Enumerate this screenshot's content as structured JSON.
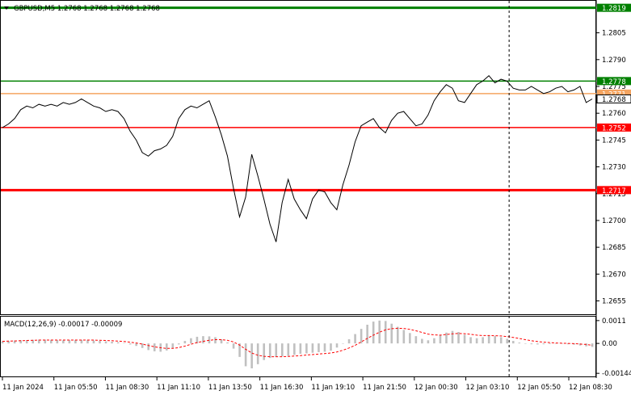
{
  "chart_data": [
    {
      "type": "line",
      "title": "GBPUSD,M5  1.2768 1.2768 1.2768 1.2768",
      "ylim": [
        1.2648,
        1.2822
      ],
      "y_ticks": [
        "1.2805",
        "1.2790",
        "1.2775",
        "1.2760",
        "1.2745",
        "1.2730",
        "1.2715",
        "1.2700",
        "1.2685",
        "1.2670",
        "1.2655"
      ],
      "y_tick_values": [
        1.2805,
        1.279,
        1.2775,
        1.276,
        1.2745,
        1.273,
        1.2715,
        1.27,
        1.2685,
        1.267,
        1.2655
      ],
      "x_tick_labels": [
        "11 Jan 2024",
        "11 Jan 05:50",
        "11 Jan 08:30",
        "11 Jan 11:10",
        "11 Jan 13:50",
        "11 Jan 16:30",
        "11 Jan 19:10",
        "11 Jan 21:50",
        "12 Jan 00:30",
        "12 Jan 03:10",
        "12 Jan 05:50",
        "12 Jan 08:30"
      ],
      "x": [
        0,
        3,
        6,
        9,
        12,
        15,
        18,
        21,
        24,
        27,
        30,
        33,
        36,
        39,
        42,
        45,
        48,
        51,
        54,
        57,
        60,
        63,
        66,
        69,
        72,
        75,
        78,
        81,
        84,
        87,
        90,
        93,
        96,
        99,
        102,
        105,
        108,
        111,
        114,
        117,
        120,
        123,
        126,
        129,
        132,
        135,
        138,
        141,
        144,
        147,
        150,
        153,
        156,
        159,
        162,
        165,
        168,
        171,
        174,
        177,
        180,
        183,
        186,
        189,
        192,
        195,
        198,
        201,
        204,
        207,
        210,
        213,
        216,
        219,
        222,
        225,
        228,
        231,
        234,
        237,
        240,
        243,
        246,
        249,
        252,
        255,
        258,
        261,
        264,
        267,
        270,
        273,
        276,
        279,
        282,
        285,
        288,
        291
      ],
      "close": [
        1.2752,
        1.2754,
        1.2757,
        1.2762,
        1.2764,
        1.2763,
        1.2765,
        1.2764,
        1.2765,
        1.2764,
        1.2766,
        1.2765,
        1.2766,
        1.2768,
        1.2766,
        1.2764,
        1.2763,
        1.2761,
        1.2762,
        1.2761,
        1.2757,
        1.275,
        1.2745,
        1.2738,
        1.2736,
        1.2739,
        1.274,
        1.2742,
        1.2747,
        1.2757,
        1.2762,
        1.2764,
        1.2763,
        1.2765,
        1.2767,
        1.2758,
        1.2748,
        1.2736,
        1.2718,
        1.2702,
        1.2713,
        1.2737,
        1.2725,
        1.2712,
        1.2698,
        1.2688,
        1.271,
        1.2723,
        1.2712,
        1.2706,
        1.2701,
        1.2712,
        1.2717,
        1.2716,
        1.271,
        1.2706,
        1.272,
        1.2731,
        1.2744,
        1.2753,
        1.2755,
        1.2757,
        1.2752,
        1.2749,
        1.2756,
        1.276,
        1.2761,
        1.2757,
        1.2753,
        1.2754,
        1.2759,
        1.2767,
        1.2772,
        1.2776,
        1.2774,
        1.2767,
        1.2766,
        1.2771,
        1.2776,
        1.2778,
        1.2781,
        1.2777,
        1.2779,
        1.2778,
        1.2774,
        1.2773,
        1.2773,
        1.2775,
        1.2773,
        1.2771,
        1.2772,
        1.2774,
        1.2775,
        1.2772,
        1.2773,
        1.2775,
        1.2766,
        1.2768
      ],
      "horizontal_lines": [
        {
          "label": "1.2819",
          "value": 1.2819,
          "color": "#008000",
          "label_bg": "#008000"
        },
        {
          "label": "1.2778",
          "value": 1.2778,
          "color": "#008000",
          "label_bg": "#008000"
        },
        {
          "label": "1.2771",
          "value": 1.2771,
          "color": "#f4a460",
          "label_bg": "#f4a460"
        },
        {
          "label": "1.2752",
          "value": 1.2752,
          "color": "#ff0000",
          "label_bg": "#ff0000"
        },
        {
          "label": "1.2717",
          "value": 1.2717,
          "color": "#ff0000",
          "label_bg": "#ff0000"
        }
      ],
      "current_price": {
        "label": "1.2768",
        "value": 1.2768
      },
      "vertical_line_at_x": 250,
      "line_color": "#000000"
    },
    {
      "type": "bar",
      "title": "MACD(12,26,9) -0.00017 -0.00009",
      "ylim": [
        -0.00155,
        0.00125
      ],
      "y_ticks": [
        "0.0011",
        "0.00",
        "-0.00144"
      ],
      "y_tick_values": [
        0.0011,
        0.0,
        -0.00144
      ],
      "x": [
        0,
        3,
        6,
        9,
        12,
        15,
        18,
        21,
        24,
        27,
        30,
        33,
        36,
        39,
        42,
        45,
        48,
        51,
        54,
        57,
        60,
        63,
        66,
        69,
        72,
        75,
        78,
        81,
        84,
        87,
        90,
        93,
        96,
        99,
        102,
        105,
        108,
        111,
        114,
        117,
        120,
        123,
        126,
        129,
        132,
        135,
        138,
        141,
        144,
        147,
        150,
        153,
        156,
        159,
        162,
        165,
        168,
        171,
        174,
        177,
        180,
        183,
        186,
        189,
        192,
        195,
        198,
        201,
        204,
        207,
        210,
        213,
        216,
        219,
        222,
        225,
        228,
        231,
        234,
        237,
        240,
        243,
        246,
        249,
        252,
        255,
        258,
        261,
        264,
        267,
        270,
        273,
        276,
        279,
        282,
        285,
        288,
        291
      ],
      "histogram": [
        0.0001,
        0.00012,
        0.00014,
        0.00015,
        0.00016,
        0.00017,
        0.00018,
        0.00018,
        0.00017,
        0.00016,
        0.00015,
        0.00016,
        0.00017,
        0.00017,
        0.00016,
        0.00014,
        0.00012,
        0.0001,
        8e-05,
        6e-05,
        2e-05,
        -5e-05,
        -0.00012,
        -0.00022,
        -0.00032,
        -0.00038,
        -0.0004,
        -0.00034,
        -0.00022,
        -5e-05,
        0.00012,
        0.00025,
        0.00032,
        0.00035,
        0.00034,
        0.0003,
        0.0002,
        5e-05,
        -0.00025,
        -0.00065,
        -0.0011,
        -0.0012,
        -0.001,
        -0.0008,
        -0.0007,
        -0.00065,
        -0.00062,
        -0.0006,
        -0.00055,
        -0.0005,
        -0.00048,
        -0.00045,
        -0.00042,
        -0.0004,
        -0.00035,
        -0.0002,
        0.0,
        0.0002,
        0.00045,
        0.0007,
        0.0009,
        0.00105,
        0.0011,
        0.00108,
        0.00095,
        0.0008,
        0.00065,
        0.0005,
        0.00035,
        0.00022,
        0.00015,
        0.00025,
        0.0004,
        0.00052,
        0.0006,
        0.00055,
        0.00042,
        0.0003,
        0.00025,
        0.0003,
        0.00038,
        0.00035,
        0.0003,
        0.00022,
        0.00012,
        4e-05,
        -2e-05,
        -4e-05,
        -5e-05,
        -4e-05,
        -3e-05,
        -2e-05,
        -2e-05,
        -4e-05,
        -6e-05,
        -0.0001,
        -0.00014,
        -0.00017
      ],
      "signal": [
        0.0001,
        0.00011,
        0.00012,
        0.00013,
        0.00014,
        0.00015,
        0.00016,
        0.00016,
        0.00016,
        0.00016,
        0.00016,
        0.00016,
        0.00016,
        0.00016,
        0.00016,
        0.00016,
        0.00015,
        0.00014,
        0.00013,
        0.00011,
        9e-05,
        6e-05,
        2e-05,
        -3e-05,
        -0.0001,
        -0.00016,
        -0.00021,
        -0.00024,
        -0.00024,
        -0.0002,
        -0.00013,
        -4e-05,
        4e-05,
        0.0001,
        0.00015,
        0.00018,
        0.00018,
        0.00015,
        7e-05,
        -8e-05,
        -0.00028,
        -0.00046,
        -0.00057,
        -0.00062,
        -0.00064,
        -0.00064,
        -0.00064,
        -0.00063,
        -0.00061,
        -0.00059,
        -0.00056,
        -0.00054,
        -0.00051,
        -0.00049,
        -0.00046,
        -0.00041,
        -0.00033,
        -0.00022,
        -9e-05,
        7e-05,
        0.00024,
        0.0004,
        0.00054,
        0.00065,
        0.00071,
        0.00073,
        0.00072,
        0.00068,
        0.00061,
        0.00053,
        0.00045,
        0.00041,
        0.0004,
        0.00043,
        0.00046,
        0.00048,
        0.00047,
        0.00044,
        0.0004,
        0.00038,
        0.00038,
        0.00037,
        0.00036,
        0.00033,
        0.00029,
        0.00024,
        0.00018,
        0.00013,
        9e-05,
        6e-05,
        4e-05,
        2e-05,
        1e-05,
        0.0,
        -1e-05,
        -3e-05,
        -5e-05,
        -9e-05
      ],
      "hist_color": "#c0c0c0",
      "signal_color": "#ff0000"
    }
  ]
}
